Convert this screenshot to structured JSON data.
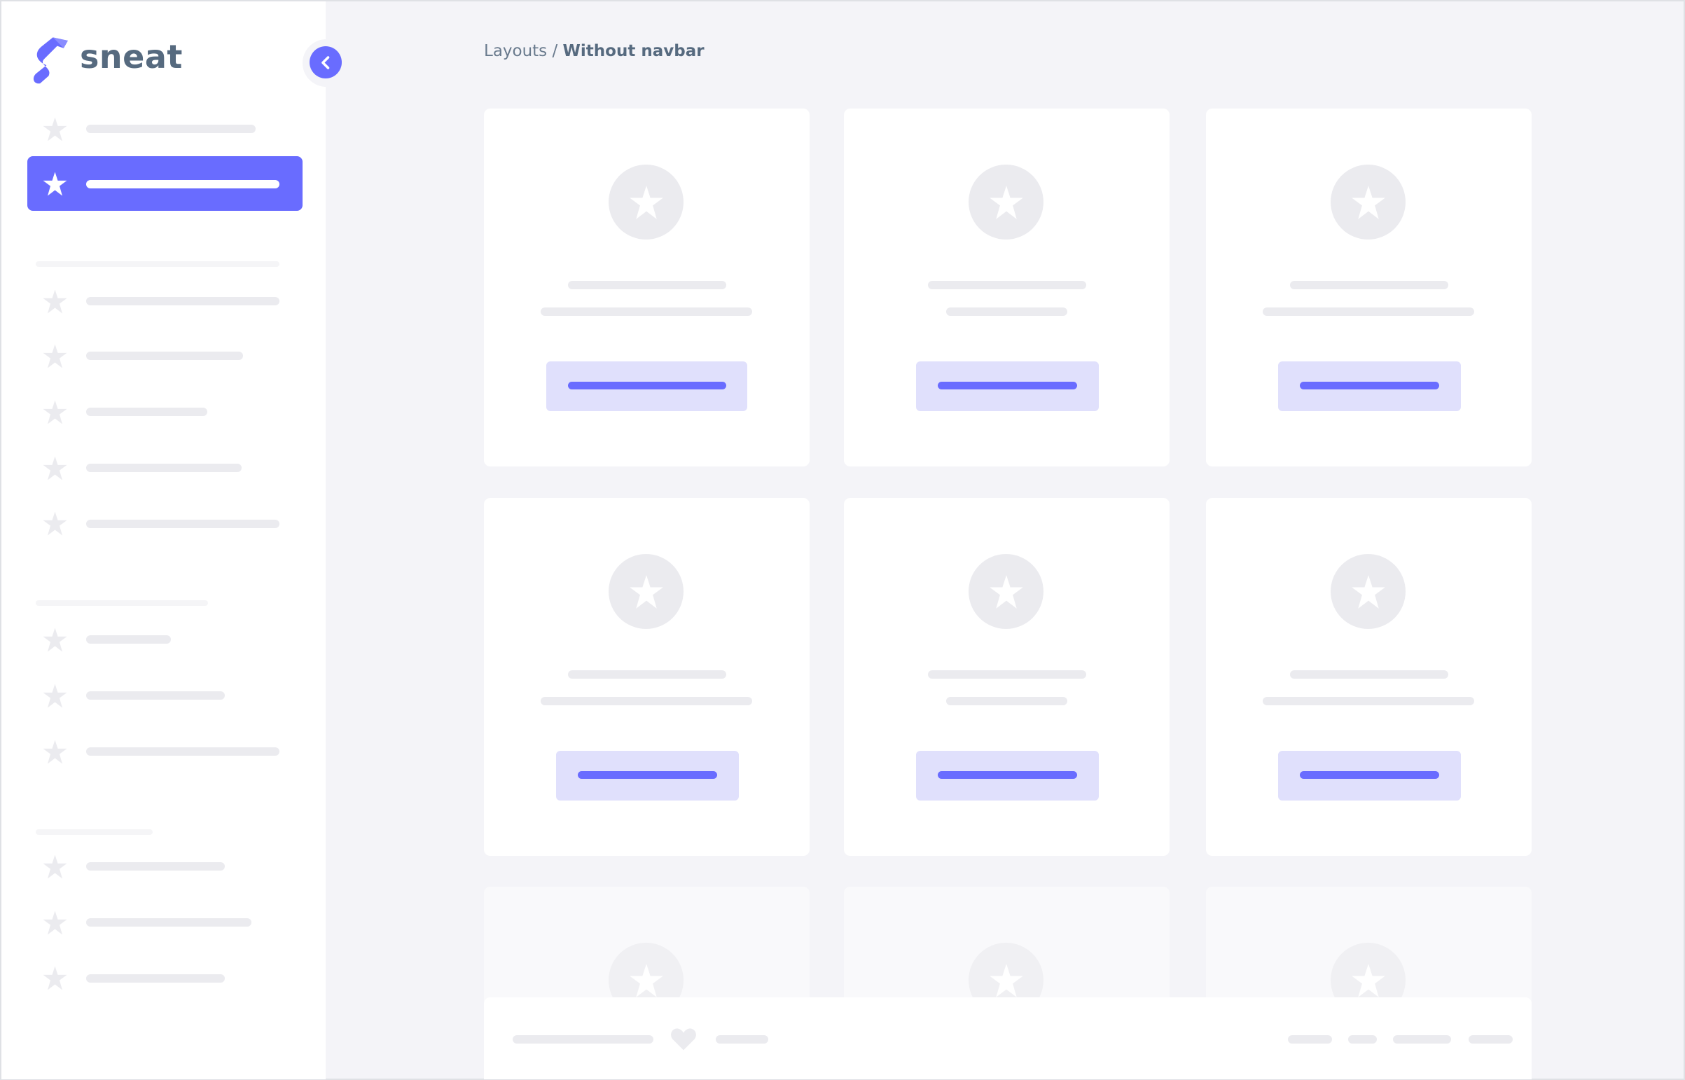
{
  "brand": {
    "name": "sneat",
    "logo_icon": "sneat-logo-icon"
  },
  "breadcrumb": {
    "parent": "Layouts",
    "separator": "/",
    "current": "Without navbar"
  },
  "sidebar": {
    "toggle_icon": "chevron-left-icon",
    "active_item_index": 1
  },
  "colors": {
    "primary": "#696cff",
    "primary_light": "#e0e0fc",
    "placeholder": "#ebebef",
    "text": "#566a7f",
    "background": "#f4f4f8"
  },
  "footer": {
    "icon": "heart-icon"
  }
}
